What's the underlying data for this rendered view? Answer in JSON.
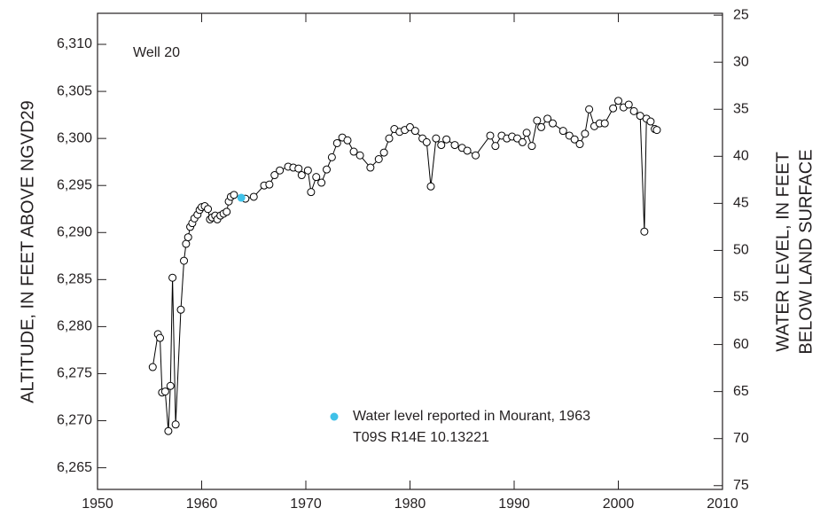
{
  "chart_data": {
    "type": "line",
    "annotations": [
      "Well 20",
      "T09S R14E 10.13221"
    ],
    "ylabel": "ALTITUDE, IN FEET ABOVE NGVD29",
    "y2label": [
      "WATER LEVEL, IN FEET",
      "BELOW LAND SURFACE"
    ],
    "xlim": [
      1950,
      2010
    ],
    "xticks": [
      1950,
      1960,
      1970,
      1980,
      1990,
      2000,
      2010
    ],
    "ylim": [
      6262.7,
      6313.3
    ],
    "yticks": [
      {
        "value": 6265,
        "label": "6,265"
      },
      {
        "value": 6270,
        "label": "6,270"
      },
      {
        "value": 6275,
        "label": "6,275"
      },
      {
        "value": 6280,
        "label": "6,280"
      },
      {
        "value": 6285,
        "label": "6,285"
      },
      {
        "value": 6290,
        "label": "6,290"
      },
      {
        "value": 6295,
        "label": "6,295"
      },
      {
        "value": 6300,
        "label": "6,300"
      },
      {
        "value": 6305,
        "label": "6,305"
      },
      {
        "value": 6310,
        "label": "6,310"
      }
    ],
    "y2lim": [
      75.4,
      24.8
    ],
    "y2ticks": [
      25,
      30,
      35,
      40,
      45,
      50,
      55,
      60,
      65,
      70,
      75
    ],
    "legend": "bottom-center",
    "series": [
      {
        "color": "#000000",
        "marker": "open-circle",
        "x": [
          1955.3,
          1955.8,
          1956.0,
          1956.2,
          1956.5,
          1956.8,
          1957.0,
          1957.2,
          1957.5,
          1958.0,
          1958.3,
          1958.5,
          1958.7,
          1958.9,
          1959.1,
          1959.3,
          1959.6,
          1959.8,
          1960.0,
          1960.3,
          1960.6,
          1960.8,
          1961.0,
          1961.3,
          1961.5,
          1961.8,
          1962.1,
          1962.4,
          1962.6,
          1962.8,
          1963.1,
          1964.2,
          1965.0,
          1966.0,
          1966.5,
          1967.0,
          1967.5,
          1968.3,
          1968.8,
          1969.3,
          1969.6,
          1970.2,
          1970.5,
          1971.0,
          1971.5,
          1972.0,
          1972.5,
          1973.0,
          1973.5,
          1974.0,
          1974.6,
          1975.2,
          1976.2,
          1977.0,
          1977.5,
          1978.0,
          1978.5,
          1979.0,
          1979.5,
          1980.0,
          1980.5,
          1981.2,
          1981.6,
          1982.0,
          1982.5,
          1983.0,
          1983.5,
          1984.3,
          1985.0,
          1985.5,
          1986.3,
          1987.7,
          1988.2,
          1988.8,
          1989.3,
          1989.8,
          1990.3,
          1990.8,
          1991.2,
          1991.7,
          1992.2,
          1992.6,
          1993.2,
          1993.7,
          1994.7,
          1995.3,
          1995.8,
          1996.3,
          1996.8,
          1997.2,
          1997.7,
          1998.2,
          1998.7,
          1999.5,
          2000.0,
          2000.5,
          2001.0,
          2001.5,
          2002.1,
          2002.5,
          2002.7,
          2003.1,
          2003.5,
          2003.7
        ],
        "values": [
          6275.7,
          6279.2,
          6278.8,
          6273.0,
          6273.1,
          6268.9,
          6273.7,
          6285.2,
          6269.6,
          6281.8,
          6287.0,
          6288.8,
          6289.5,
          6290.6,
          6291.0,
          6291.5,
          6291.9,
          6292.4,
          6292.7,
          6292.8,
          6292.5,
          6291.4,
          6291.6,
          6291.8,
          6291.4,
          6291.8,
          6292.0,
          6292.2,
          6293.3,
          6293.8,
          6294.0,
          6293.6,
          6293.8,
          6295.0,
          6295.1,
          6296.1,
          6296.6,
          6297.0,
          6296.9,
          6296.8,
          6296.1,
          6296.6,
          6294.3,
          6295.9,
          6295.3,
          6296.7,
          6298.0,
          6299.5,
          6300.1,
          6299.8,
          6298.6,
          6298.2,
          6296.9,
          6297.8,
          6298.5,
          6300.0,
          6301.0,
          6300.7,
          6300.9,
          6301.2,
          6300.8,
          6300.0,
          6299.6,
          6294.9,
          6300.0,
          6299.3,
          6299.9,
          6299.3,
          6299.0,
          6298.7,
          6298.2,
          6300.3,
          6299.2,
          6300.3,
          6300.0,
          6300.2,
          6300.0,
          6299.6,
          6300.6,
          6299.2,
          6301.9,
          6301.2,
          6302.1,
          6301.6,
          6300.8,
          6300.3,
          6299.9,
          6299.4,
          6300.5,
          6303.1,
          6301.3,
          6301.6,
          6301.6,
          6303.2,
          6304.0,
          6303.3,
          6303.6,
          6302.9,
          6302.4,
          6290.1,
          6302.1,
          6301.8,
          6301.0,
          6300.9
        ]
      },
      {
        "name": "Water level reported in Mourant, 1963",
        "color": "#3fc1e8",
        "marker": "dot",
        "x": [
          1963.8
        ],
        "values": [
          6293.7
        ]
      }
    ]
  }
}
